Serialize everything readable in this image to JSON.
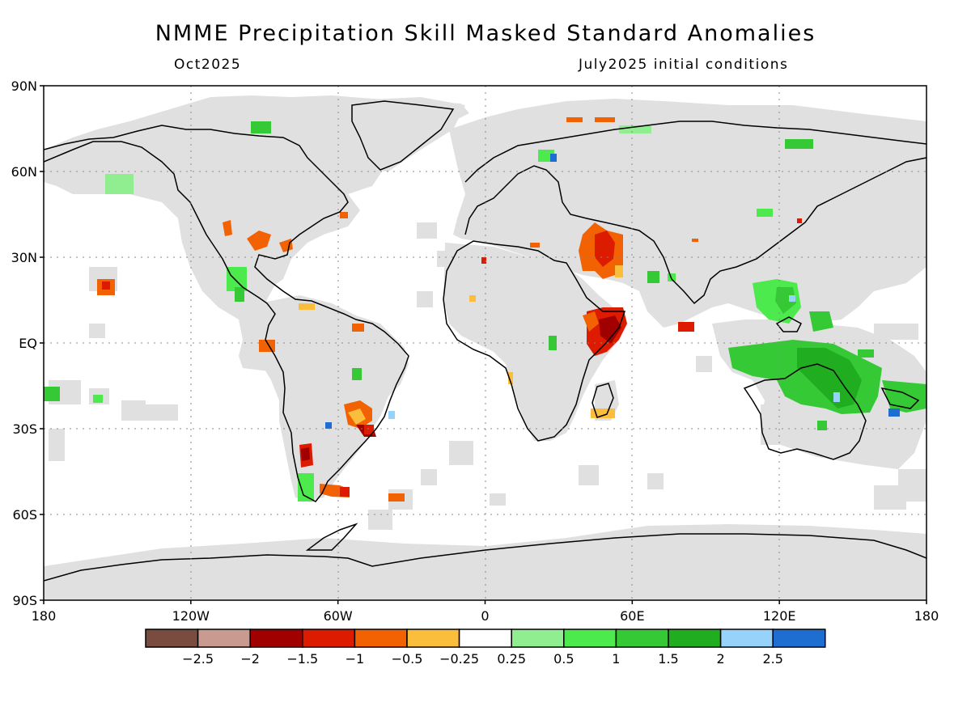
{
  "title": "NMME Precipitation Skill Masked Standard Anomalies",
  "subtitle_left": "Oct2025",
  "subtitle_right": "July2025 initial conditions",
  "lat_labels": [
    "90N",
    "60N",
    "30N",
    "EQ",
    "30S",
    "60S",
    "90S"
  ],
  "lat_values": [
    90,
    60,
    30,
    0,
    -30,
    -60,
    -90
  ],
  "lon_labels": [
    "180",
    "120W",
    "60W",
    "0",
    "60E",
    "120E",
    "180"
  ],
  "lon_values": [
    -180,
    -120,
    -60,
    0,
    60,
    120,
    180
  ],
  "colorbar": {
    "colors": [
      "#7a4b3f",
      "#c89a90",
      "#a00000",
      "#dd1b00",
      "#f26203",
      "#fbbd3c",
      "#ffffff",
      "#90ee90",
      "#4cea4c",
      "#36c936",
      "#20ae20",
      "#96d2fa",
      "#1e6ed2"
    ],
    "tick_labels": [
      "-2.5",
      "-2",
      "-1.5",
      "-1",
      "-0.5",
      "-0.25",
      "0.25",
      "0.5",
      "1",
      "1.5",
      "2",
      "2.5"
    ]
  },
  "colors": {
    "masked_gray": "#e0e0e0",
    "grid": "#888888",
    "coast": "#000000"
  }
}
